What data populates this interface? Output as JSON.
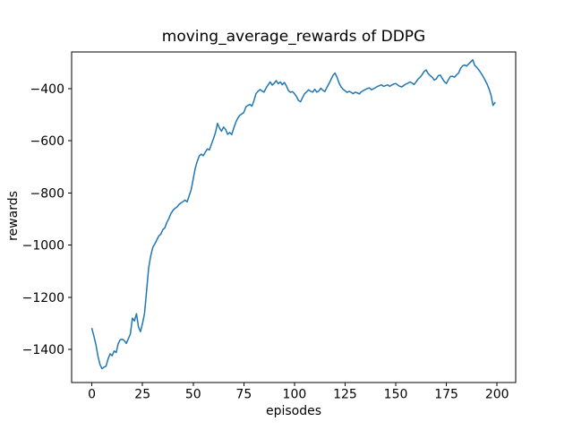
{
  "figure": {
    "title": "moving_average_rewards of DDPG",
    "background_color": "#ffffff",
    "text_color": "#000000"
  },
  "chart_data": {
    "type": "line",
    "title": "moving_average_rewards of DDPG",
    "xlabel": "episodes",
    "ylabel": "rewards",
    "grid": false,
    "legend_position": "none",
    "line_color": "#1f77b4",
    "line_width": 1.5,
    "xlim": [
      -10,
      209.2
    ],
    "ylim": [
      -1527,
      -259
    ],
    "x_ticks": [
      0,
      25,
      50,
      75,
      100,
      125,
      150,
      175,
      200
    ],
    "x_tick_labels": [
      "0",
      "25",
      "50",
      "75",
      "100",
      "125",
      "150",
      "175",
      "200"
    ],
    "y_ticks": [
      -400,
      -600,
      -800,
      -1000,
      -1200,
      -1400
    ],
    "y_tick_labels": [
      "−400",
      "−600",
      "−800",
      "−1000",
      "−1200",
      "−1400"
    ],
    "series": [
      {
        "name": "moving_average_rewards",
        "x_start": 0,
        "x_step": 1,
        "values": [
          -1320,
          -1349,
          -1382,
          -1426,
          -1458,
          -1474,
          -1468,
          -1464,
          -1436,
          -1417,
          -1424,
          -1406,
          -1412,
          -1378,
          -1363,
          -1361,
          -1366,
          -1377,
          -1359,
          -1341,
          -1280,
          -1291,
          -1263,
          -1314,
          -1332,
          -1300,
          -1261,
          -1176,
          -1089,
          -1043,
          -1010,
          -996,
          -981,
          -965,
          -958,
          -941,
          -934,
          -913,
          -898,
          -879,
          -867,
          -859,
          -854,
          -844,
          -838,
          -833,
          -827,
          -834,
          -811,
          -788,
          -747,
          -706,
          -679,
          -658,
          -651,
          -657,
          -643,
          -631,
          -635,
          -613,
          -592,
          -568,
          -533,
          -551,
          -563,
          -547,
          -556,
          -575,
          -568,
          -576,
          -552,
          -530,
          -513,
          -502,
          -497,
          -491,
          -470,
          -464,
          -460,
          -467,
          -446,
          -419,
          -410,
          -403,
          -409,
          -413,
          -397,
          -385,
          -374,
          -386,
          -379,
          -369,
          -381,
          -374,
          -385,
          -376,
          -389,
          -407,
          -414,
          -411,
          -419,
          -430,
          -445,
          -450,
          -434,
          -419,
          -412,
          -404,
          -410,
          -413,
          -402,
          -413,
          -409,
          -398,
          -406,
          -411,
          -395,
          -381,
          -365,
          -349,
          -340,
          -356,
          -378,
          -393,
          -402,
          -408,
          -414,
          -410,
          -414,
          -419,
          -413,
          -416,
          -420,
          -412,
          -407,
          -403,
          -399,
          -397,
          -404,
          -400,
          -396,
          -391,
          -388,
          -385,
          -391,
          -388,
          -385,
          -391,
          -386,
          -382,
          -380,
          -386,
          -391,
          -393,
          -387,
          -382,
          -379,
          -374,
          -378,
          -384,
          -374,
          -363,
          -356,
          -346,
          -334,
          -328,
          -342,
          -350,
          -356,
          -367,
          -362,
          -350,
          -348,
          -361,
          -373,
          -380,
          -365,
          -353,
          -352,
          -356,
          -347,
          -340,
          -322,
          -312,
          -309,
          -313,
          -305,
          -297,
          -289,
          -311,
          -318,
          -328,
          -339,
          -352,
          -366,
          -381,
          -400,
          -424,
          -464,
          -453
        ]
      }
    ]
  }
}
